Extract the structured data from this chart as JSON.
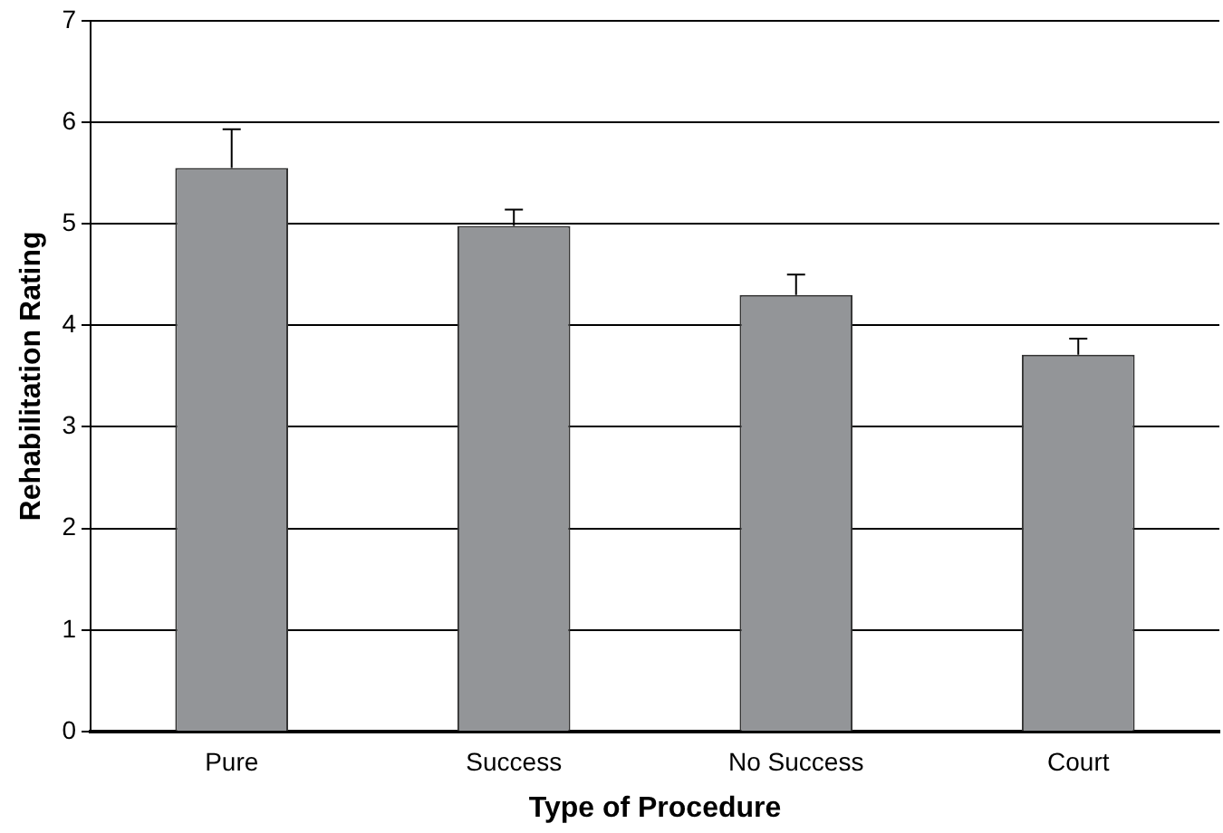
{
  "chart_data": {
    "type": "bar",
    "xlabel": "Type of Procedure",
    "ylabel": "Rehabilitation Rating",
    "categories": [
      "Pure",
      "Success",
      "No Success",
      "Court"
    ],
    "values": [
      5.55,
      4.98,
      4.3,
      3.71
    ],
    "errors": [
      [
        5.55,
        5.93
      ],
      [
        4.98,
        5.14
      ],
      [
        4.3,
        4.5
      ],
      [
        3.71,
        3.87
      ]
    ],
    "color": "#939598",
    "ylim": [
      0,
      7
    ],
    "yticks": [
      0,
      1,
      2,
      3,
      4,
      5,
      6,
      7
    ],
    "grid": "y",
    "legend": false
  }
}
